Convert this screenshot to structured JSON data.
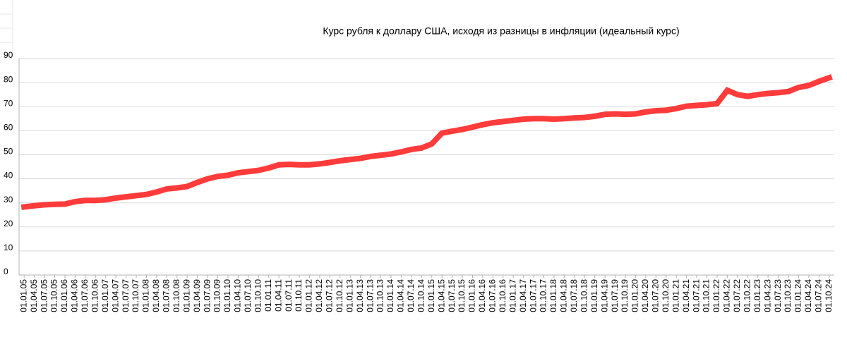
{
  "chart_data": {
    "type": "line",
    "title": "Курс рубля к доллару США, исходя из разницы в инфляции (идеальный курс)",
    "categories": [
      "01.01.05",
      "01.04.05",
      "01.07.05",
      "01.10.05",
      "01.01.06",
      "01.04.06",
      "01.07.06",
      "01.10.06",
      "01.01.07",
      "01.04.07",
      "01.07.07",
      "01.10.07",
      "01.01.08",
      "01.04.08",
      "01.07.08",
      "01.10.08",
      "01.01.09",
      "01.04.09",
      "01.07.09",
      "01.10.09",
      "01.01.10",
      "01.04.10",
      "01.07.10",
      "01.10.10",
      "01.01.11",
      "01.04.11",
      "01.07.11",
      "01.10.11",
      "01.01.12",
      "01.04.12",
      "01.07.12",
      "01.10.12",
      "01.01.13",
      "01.04.13",
      "01.07.13",
      "01.10.13",
      "01.01.14",
      "01.04.14",
      "01.07.14",
      "01.10.14",
      "01.01.15",
      "01.04.15",
      "01.07.15",
      "01.10.15",
      "01.01.16",
      "01.04.16",
      "01.07.16",
      "01.10.16",
      "01.01.17",
      "01.04.17",
      "01.07.17",
      "01.10.17",
      "01.01.18",
      "01.04.18",
      "01.07.18",
      "01.10.18",
      "01.01.19",
      "01.04.19",
      "01.07.19",
      "01.10.19",
      "01.01.20",
      "01.04.20",
      "01.07.20",
      "01.10.20",
      "01.01.21",
      "01.04.21",
      "01.07.21",
      "01.10.21",
      "01.01.22",
      "01.04.22",
      "01.07.22",
      "01.10.22",
      "01.01.23",
      "01.04.23",
      "01.07.23",
      "01.10.23",
      "01.01.24",
      "01.04.24",
      "01.07.24",
      "01.10.24"
    ],
    "values": [
      28.3,
      28.8,
      29.2,
      29.4,
      29.5,
      30.5,
      31.0,
      31.0,
      31.3,
      32.0,
      32.5,
      33.0,
      33.5,
      34.5,
      35.8,
      36.2,
      36.8,
      38.5,
      40.0,
      41.0,
      41.5,
      42.5,
      43.0,
      43.5,
      44.5,
      45.8,
      46.0,
      45.8,
      45.8,
      46.2,
      46.8,
      47.5,
      48.0,
      48.5,
      49.3,
      49.8,
      50.3,
      51.2,
      52.2,
      52.8,
      54.5,
      59.0,
      59.8,
      60.5,
      61.5,
      62.5,
      63.3,
      63.8,
      64.3,
      64.8,
      65.0,
      65.0,
      64.8,
      65.0,
      65.3,
      65.5,
      66.0,
      66.8,
      67.0,
      66.8,
      67.0,
      67.8,
      68.3,
      68.5,
      69.2,
      70.2,
      70.5,
      70.8,
      71.3,
      76.8,
      75.0,
      74.3,
      75.0,
      75.5,
      75.8,
      76.3,
      78.0,
      78.8,
      80.5,
      82.0
    ],
    "color": "#ff3b3b",
    "ylim": [
      0,
      90
    ],
    "yticks": [
      0,
      10,
      20,
      30,
      40,
      50,
      60,
      70,
      80,
      90
    ],
    "grid": true
  }
}
